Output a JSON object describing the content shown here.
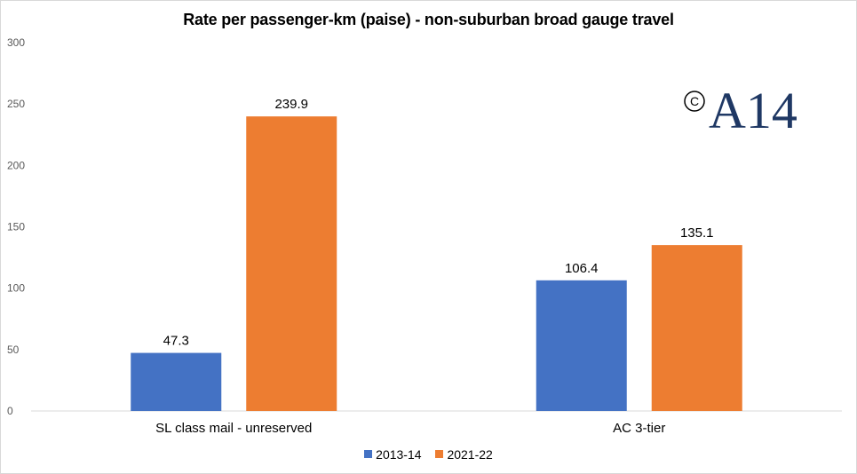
{
  "chart_data": {
    "type": "bar",
    "title": "Rate per passenger-km (paise) - non-suburban broad gauge travel",
    "categories": [
      "SL class mail - unreserved",
      "AC 3-tier"
    ],
    "series": [
      {
        "name": "2013-14",
        "values": [
          47.3,
          106.4
        ],
        "labels": [
          "47.3",
          "106.4"
        ],
        "color": "#4472c4"
      },
      {
        "name": "2021-22",
        "values": [
          239.9,
          135.1
        ],
        "labels": [
          "239.9",
          "135.1"
        ],
        "color": "#ed7d31"
      }
    ],
    "ylim": [
      0,
      300
    ],
    "yticks": [
      "0",
      "50",
      "100",
      "150",
      "200",
      "250",
      "300"
    ],
    "grid": false,
    "legend_position": "bottom",
    "xlabel": "",
    "ylabel": ""
  },
  "watermark": {
    "text": "A14",
    "copyright_symbol": "C",
    "color": "#1f3864"
  }
}
